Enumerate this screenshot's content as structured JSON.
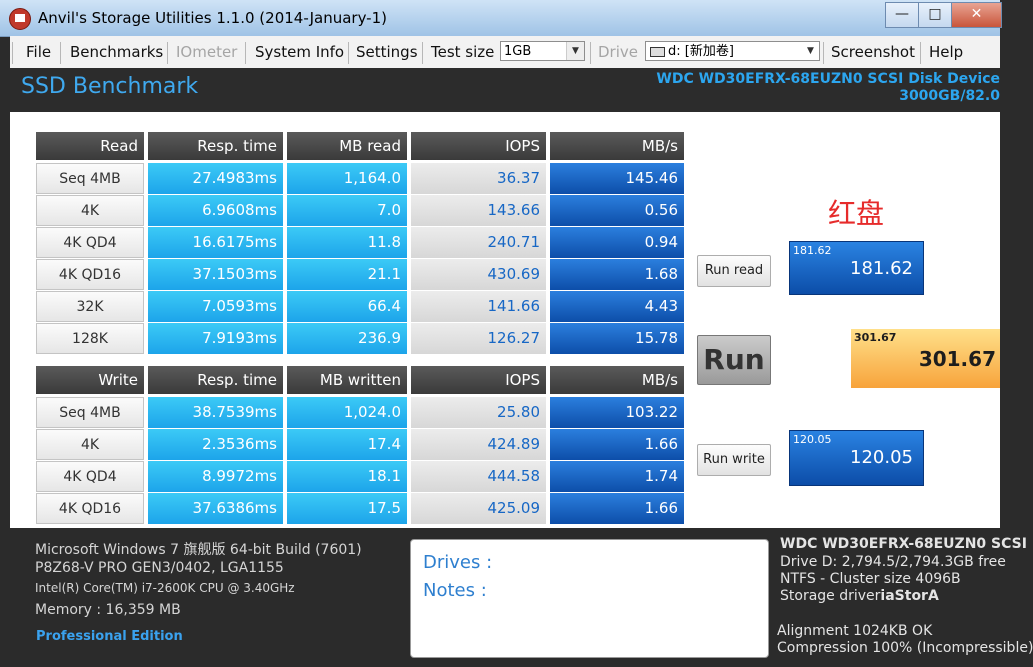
{
  "window": {
    "title": "Anvil's Storage Utilities 1.1.0 (2014-January-1)"
  },
  "menu": {
    "file": "File",
    "benchmarks": "Benchmarks",
    "iometer": "IOmeter",
    "system_info": "System Info",
    "settings": "Settings",
    "test_size_label": "Test size",
    "test_size_value": "1GB",
    "drive_label": "Drive",
    "drive_value": "d: [新加卷]",
    "screenshot": "Screenshot",
    "help": "Help"
  },
  "header": {
    "page_title": "SSD Benchmark",
    "disk_name": "WDC WD30EFRX-68EUZN0 SCSI Disk Device",
    "disk_capacity": "3000GB/82.0"
  },
  "read_table": {
    "headers": [
      "Read",
      "Resp. time",
      "MB read",
      "IOPS",
      "MB/s"
    ],
    "rows": [
      {
        "label": "Seq 4MB",
        "resp": "27.4983ms",
        "mb": "1,164.0",
        "iops": "36.37",
        "mbs": "145.46"
      },
      {
        "label": "4K",
        "resp": "6.9608ms",
        "mb": "7.0",
        "iops": "143.66",
        "mbs": "0.56"
      },
      {
        "label": "4K QD4",
        "resp": "16.6175ms",
        "mb": "11.8",
        "iops": "240.71",
        "mbs": "0.94"
      },
      {
        "label": "4K QD16",
        "resp": "37.1503ms",
        "mb": "21.1",
        "iops": "430.69",
        "mbs": "1.68"
      },
      {
        "label": "32K",
        "resp": "7.0593ms",
        "mb": "66.4",
        "iops": "141.66",
        "mbs": "4.43"
      },
      {
        "label": "128K",
        "resp": "7.9193ms",
        "mb": "236.9",
        "iops": "126.27",
        "mbs": "15.78"
      }
    ]
  },
  "write_table": {
    "headers": [
      "Write",
      "Resp. time",
      "MB written",
      "IOPS",
      "MB/s"
    ],
    "rows": [
      {
        "label": "Seq 4MB",
        "resp": "38.7539ms",
        "mb": "1,024.0",
        "iops": "25.80",
        "mbs": "103.22"
      },
      {
        "label": "4K",
        "resp": "2.3536ms",
        "mb": "17.4",
        "iops": "424.89",
        "mbs": "1.66"
      },
      {
        "label": "4K QD4",
        "resp": "8.9972ms",
        "mb": "18.1",
        "iops": "444.58",
        "mbs": "1.74"
      },
      {
        "label": "4K QD16",
        "resp": "37.6386ms",
        "mb": "17.5",
        "iops": "425.09",
        "mbs": "1.66"
      }
    ]
  },
  "controls": {
    "run_read": "Run read",
    "run": "Run",
    "run_write": "Run write"
  },
  "scores": {
    "read_small": "181.62",
    "read_big": "181.62",
    "total_small": "301.67",
    "total_big": "301.67",
    "write_small": "120.05",
    "write_big": "120.05"
  },
  "tag": "红盘",
  "system": {
    "os": "Microsoft Windows 7 旗舰版  64-bit Build (7601)",
    "board": "P8Z68-V PRO GEN3/0402, LGA1155",
    "cpu": "Intel(R) Core(TM) i7-2600K CPU @ 3.40GHz",
    "memory": "Memory : 16,359 MB",
    "edition": "Professional Edition"
  },
  "notes": {
    "drives_label": "Drives :",
    "notes_label": "Notes :"
  },
  "drive_info": {
    "model": "WDC WD30EFRX-68EUZN0 SCSI",
    "free": "Drive D: 2,794.5/2,794.3GB free",
    "ntfs": "NTFS - Cluster size 4096B",
    "driver_label": "Storage driver",
    "driver_value": "iaStorA",
    "alignment": "Alignment 1024KB OK",
    "compression": "Compression 100% (Incompressible)"
  }
}
